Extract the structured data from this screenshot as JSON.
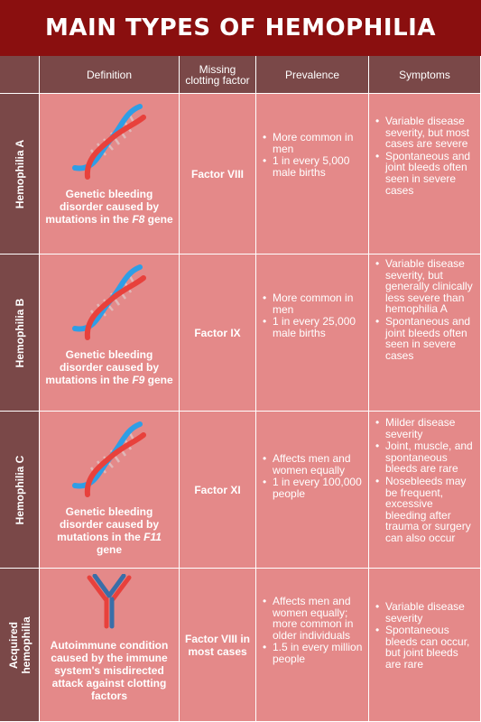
{
  "title": "MAIN TYPES OF HEMOPHILIA",
  "colors": {
    "title_bg": "#8a0f0f",
    "header_bg": "#7a4848",
    "cell_bg": "#e48989",
    "dna_red": "#e8413c",
    "dna_blue": "#2e9ee6"
  },
  "headers": {
    "definition": "Definition",
    "missing_factor": "Missing clotting factor",
    "prevalence": "Prevalence",
    "symptoms": "Symptoms"
  },
  "rows": [
    {
      "label": "Hemophilia A",
      "icon": "dna-icon",
      "definition_pre": "Genetic bleeding disorder caused by mutations in the ",
      "gene": "F8",
      "definition_post": " gene",
      "factor": "Factor VIII",
      "prevalence": [
        "More common in men",
        "1 in every 5,000 male births"
      ],
      "symptoms": [
        "Variable disease severity, but most cases are severe",
        "Spontaneous and joint bleeds often seen in severe cases"
      ]
    },
    {
      "label": "Hemophilia B",
      "icon": "dna-icon",
      "definition_pre": "Genetic bleeding disorder caused by mutations in the ",
      "gene": "F9",
      "definition_post": " gene",
      "factor": "Factor IX",
      "prevalence": [
        "More common in men",
        "1 in every 25,000 male births"
      ],
      "symptoms": [
        "Variable disease severity, but generally clinically less severe than hemophilia A",
        "Spontaneous and joint bleeds often seen in severe cases"
      ]
    },
    {
      "label": "Hemophilia C",
      "icon": "dna-icon",
      "definition_pre": "Genetic bleeding disorder caused by mutations in the ",
      "gene": "F11",
      "definition_post": " gene",
      "factor": "Factor XI",
      "prevalence": [
        "Affects men and women equally",
        "1 in every 100,000 people"
      ],
      "symptoms": [
        "Milder disease severity",
        "Joint, muscle, and spontaneous bleeds are rare",
        "Nosebleeds may be frequent, excessive bleeding after trauma or surgery can also occur"
      ]
    },
    {
      "label": "Acquired hemophilia",
      "icon": "antibody-icon",
      "definition": "Autoimmune condition caused by the immune system's misdirected attack against clotting factors",
      "factor": "Factor VIII in most cases",
      "prevalence": [
        "Affects men and women equally; more common in older individuals",
        "1.5 in every million people"
      ],
      "symptoms": [
        "Variable disease severity",
        "Spontaneous bleeds can occur, but joint bleeds are rare"
      ]
    }
  ]
}
